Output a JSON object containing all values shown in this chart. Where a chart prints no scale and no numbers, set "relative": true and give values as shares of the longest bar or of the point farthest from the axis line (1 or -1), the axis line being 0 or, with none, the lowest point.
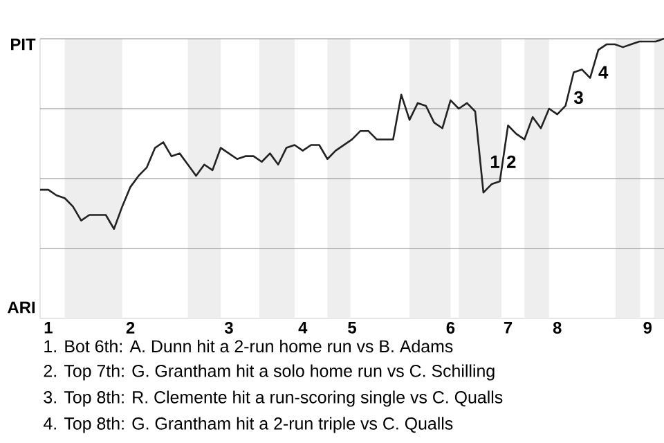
{
  "chart_data": {
    "type": "line",
    "color": "#222222",
    "line_style": "solid",
    "relative": true,
    "categories": [
      null,
      "1",
      null,
      null,
      null,
      null,
      null,
      null,
      null,
      null,
      null,
      "2",
      null,
      null,
      null,
      null,
      null,
      null,
      null,
      null,
      null,
      null,
      null,
      "3",
      null,
      null,
      null,
      null,
      null,
      null,
      null,
      null,
      "4",
      null,
      null,
      null,
      null,
      null,
      "5",
      null,
      null,
      null,
      null,
      null,
      null,
      null,
      null,
      null,
      null,
      null,
      "6",
      null,
      null,
      null,
      null,
      null,
      null,
      "7",
      null,
      null,
      null,
      null,
      null,
      "8",
      null,
      null,
      null,
      null,
      null,
      null,
      null,
      null,
      null,
      null,
      "9",
      null,
      null
    ],
    "values": [
      0.46,
      0.46,
      0.44,
      0.43,
      0.4,
      0.35,
      0.37,
      0.37,
      0.37,
      0.32,
      0.4,
      0.47,
      0.51,
      0.54,
      0.61,
      0.63,
      0.58,
      0.59,
      0.55,
      0.51,
      0.55,
      0.53,
      0.61,
      0.59,
      0.57,
      0.58,
      0.58,
      0.56,
      0.59,
      0.55,
      0.61,
      0.62,
      0.6,
      0.62,
      0.62,
      0.57,
      0.6,
      0.62,
      0.64,
      0.67,
      0.67,
      0.64,
      0.64,
      0.64,
      0.8,
      0.71,
      0.77,
      0.76,
      0.7,
      0.68,
      0.78,
      0.75,
      0.77,
      0.74,
      0.45,
      0.48,
      0.49,
      0.69,
      0.66,
      0.64,
      0.72,
      0.68,
      0.75,
      0.73,
      0.76,
      0.88,
      0.89,
      0.86,
      0.96,
      0.98,
      0.98,
      0.97,
      0.98,
      0.99,
      0.99,
      0.99,
      1.0
    ],
    "ref_lines": [
      {
        "axis": "y",
        "value": 0.25,
        "color": "#888888"
      },
      {
        "axis": "y",
        "value": 0.5,
        "color": "#888888"
      },
      {
        "axis": "y",
        "value": 0.75,
        "color": "#888888"
      },
      {
        "axis": "y",
        "value": 1.0,
        "color": "#888888"
      }
    ],
    "annotations": [
      "PIT",
      "ARI",
      "1",
      "2",
      "3",
      "4",
      "1. Bot 6th: A. Dunn hit a 2-run home run vs B. Adams",
      "2. Top 7th: G. Grantham hit a solo home run vs C. Schilling",
      "3. Top 8th: R. Clemente hit a run-scoring single vs C. Qualls",
      "4. Top 8th: G. Grantham hit a 2-run triple vs C. Qualls"
    ]
  }
}
